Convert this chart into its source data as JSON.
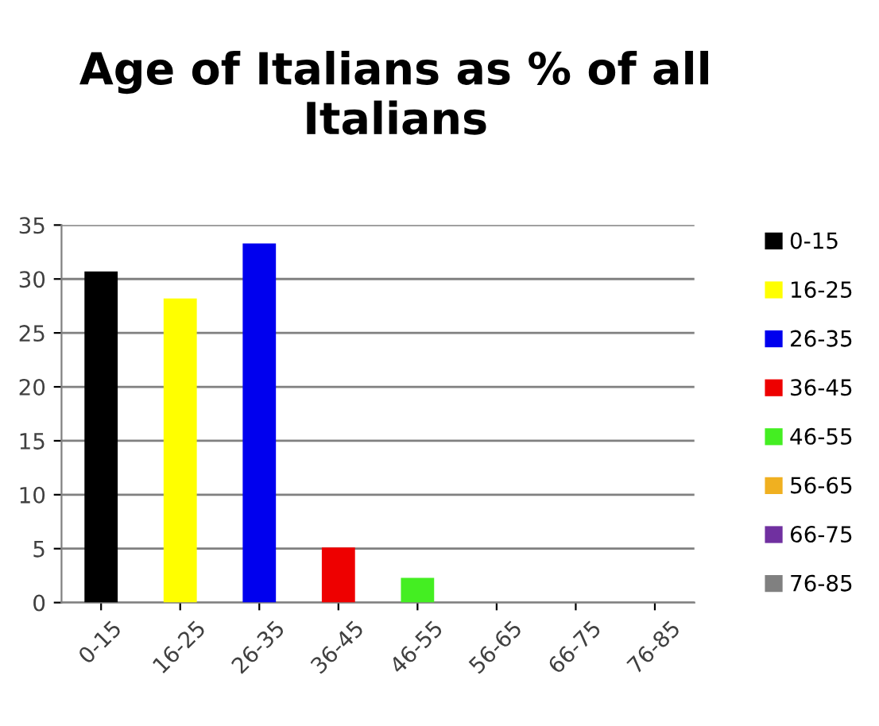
{
  "chart_data": {
    "type": "bar",
    "title": "Age of Italians as % of all Italians",
    "categories": [
      "0-15",
      "16-25",
      "26-35",
      "36-45",
      "46-55",
      "56-65",
      "66-75",
      "76-85"
    ],
    "series": [
      {
        "name": "0-15",
        "color": "#000000",
        "values": [
          30.7,
          null,
          null,
          null,
          null,
          null,
          null,
          null
        ]
      },
      {
        "name": "16-25",
        "color": "#ffff00",
        "values": [
          null,
          28.2,
          null,
          null,
          null,
          null,
          null,
          null
        ]
      },
      {
        "name": "26-35",
        "color": "#0000ee",
        "values": [
          null,
          null,
          33.3,
          null,
          null,
          null,
          null,
          null
        ]
      },
      {
        "name": "36-45",
        "color": "#ee0000",
        "values": [
          null,
          null,
          null,
          5.1,
          null,
          null,
          null,
          null
        ]
      },
      {
        "name": "46-55",
        "color": "#44ee22",
        "values": [
          null,
          null,
          null,
          null,
          2.3,
          null,
          null,
          null
        ]
      },
      {
        "name": "56-65",
        "color": "#f0b020",
        "values": [
          null,
          null,
          null,
          null,
          null,
          0,
          null,
          null
        ]
      },
      {
        "name": "66-75",
        "color": "#7030a0",
        "values": [
          null,
          null,
          null,
          null,
          null,
          null,
          0,
          null
        ]
      },
      {
        "name": "76-85",
        "color": "#808080",
        "values": [
          null,
          null,
          null,
          null,
          null,
          null,
          null,
          0
        ]
      }
    ],
    "ylim": [
      0,
      35
    ],
    "yticks": [
      0,
      5,
      10,
      15,
      20,
      25,
      30,
      35
    ],
    "grid": "y",
    "legend": "right"
  }
}
